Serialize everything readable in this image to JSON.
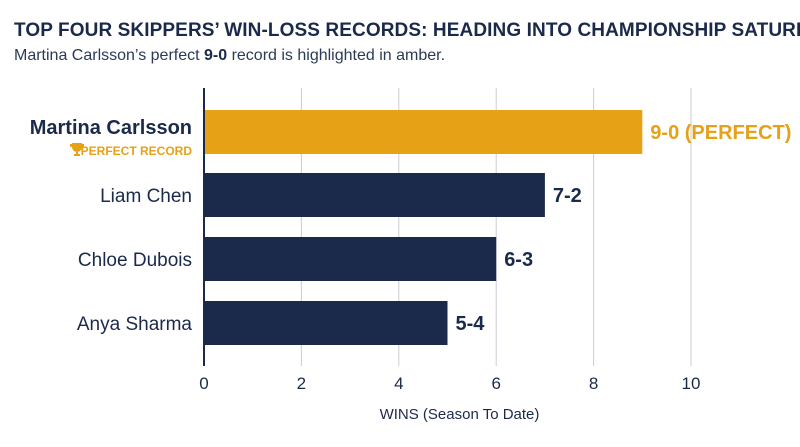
{
  "header": {
    "title": "TOP FOUR SKIPPERS’ WIN-LOSS RECORDS: HEADING INTO CHAMPIONSHIP SATURDAY",
    "subtitle_before": "Martina Carlsson’s perfect ",
    "subtitle_bold": "9-0",
    "subtitle_after": " record is highlighted in amber."
  },
  "colors": {
    "highlight": "#e6a117",
    "bar": "#1b2a4a",
    "axis": "#1b2a4a",
    "grid": "#c9cdd4"
  },
  "chart_data": {
    "type": "bar",
    "orientation": "horizontal",
    "categories": [
      "Martina Carlsson",
      "Liam Chen",
      "Chloe Dubois",
      "Anya Sharma"
    ],
    "values": [
      9,
      7,
      6,
      5
    ],
    "data_labels": [
      "9-0 (PERFECT)",
      "7-2",
      "6-3",
      "5-4"
    ],
    "highlight_index": 0,
    "highlight_badge": "PERFECT RECORD",
    "highlight_badge_icon": "trophy-icon",
    "xlabel": "WINS (Season To Date)",
    "ylabel": "",
    "xlim": [
      0,
      10
    ],
    "xticks": [
      0,
      2,
      4,
      6,
      8,
      10
    ],
    "grid": true
  }
}
